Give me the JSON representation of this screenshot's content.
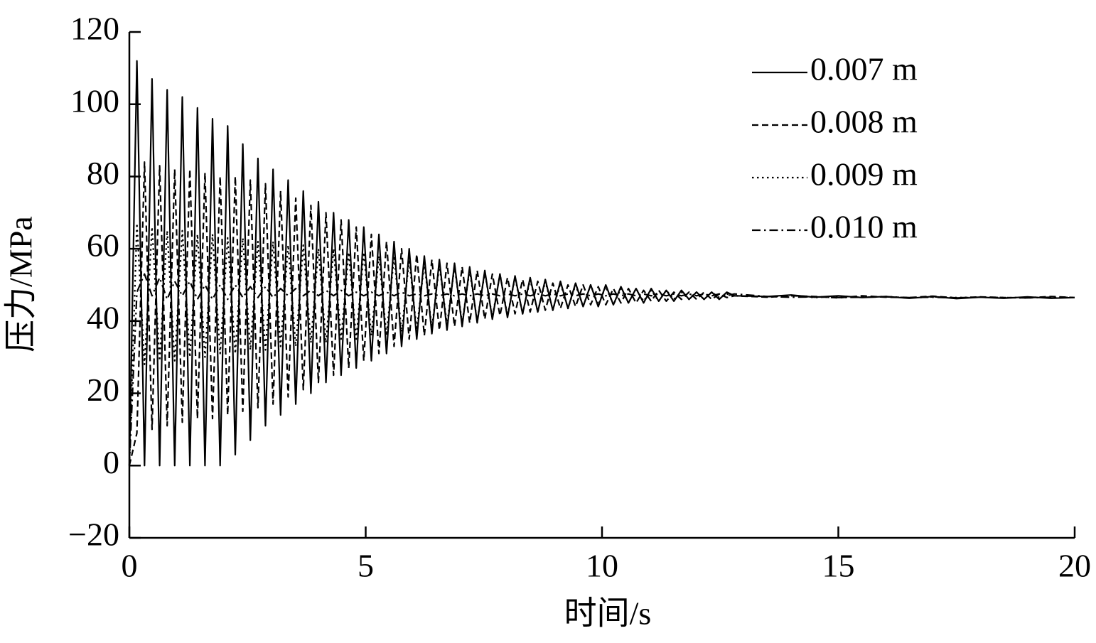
{
  "chart_data": {
    "type": "line",
    "xlabel": "时间/s",
    "ylabel": "压力/MPa",
    "xlim": [
      0,
      20
    ],
    "ylim": [
      -20,
      120
    ],
    "xticks": [
      0,
      5,
      10,
      15,
      20
    ],
    "yticks": [
      {
        "value": -20,
        "label": "−20"
      },
      0,
      20,
      40,
      60,
      80,
      100,
      120
    ],
    "legend": "upper right",
    "x": [
      0,
      0.16,
      0.32,
      0.48,
      0.64,
      0.8,
      0.96,
      1.12,
      1.28,
      1.44,
      1.6,
      1.76,
      1.92,
      2.08,
      2.24,
      2.4,
      2.56,
      2.72,
      2.88,
      3.04,
      3.2,
      3.36,
      3.52,
      3.68,
      3.84,
      4,
      4.16,
      4.32,
      4.48,
      4.64,
      4.8,
      4.96,
      5.12,
      5.28,
      5.44,
      5.6,
      5.76,
      5.92,
      6.08,
      6.24,
      6.4,
      6.56,
      6.72,
      6.88,
      7.04,
      7.2,
      7.36,
      7.52,
      7.68,
      7.84,
      8,
      8.16,
      8.32,
      8.48,
      8.64,
      8.8,
      8.96,
      9.12,
      9.28,
      9.44,
      9.6,
      9.76,
      9.92,
      10.08,
      10.24,
      10.4,
      10.56,
      10.72,
      10.88,
      11.04,
      11.2,
      11.36,
      11.52,
      11.68,
      11.84,
      12,
      12.16,
      12.32,
      12.48,
      12.64,
      12.8,
      13.5,
      14,
      14.5,
      15,
      15.5,
      16,
      16.5,
      17,
      17.5,
      18,
      18.5,
      19,
      19.5,
      20
    ],
    "series": [
      {
        "name": "0.007 m",
        "color": "#000000",
        "linestyle": "solid",
        "values": [
          0,
          112,
          0,
          107,
          0,
          104,
          0,
          102,
          0,
          99,
          0,
          96,
          0,
          94,
          3,
          89,
          7,
          85,
          11,
          82,
          14,
          79,
          17,
          76,
          20,
          73,
          23,
          70,
          25,
          68,
          27,
          66,
          29,
          64,
          31,
          62,
          33,
          60,
          35,
          58,
          36.5,
          57,
          37.5,
          56,
          38.5,
          55,
          39.5,
          54,
          40.5,
          53,
          41,
          52.5,
          42,
          52,
          42.5,
          51.5,
          43,
          51,
          43.5,
          50.5,
          44,
          50,
          44,
          50,
          44.5,
          49.5,
          45,
          49,
          45,
          49,
          45.5,
          48.5,
          45.5,
          48.5,
          46,
          48,
          46,
          48,
          46,
          48,
          47,
          46.8,
          47.2,
          46.6,
          47,
          46.5,
          46.8,
          46.3,
          46.8,
          46.2,
          46.6,
          46.3,
          46.7,
          46.3,
          46.5
        ]
      },
      {
        "name": "0.008 m",
        "color": "#000000",
        "linestyle": "dashed",
        "values": [
          0,
          9,
          84,
          10,
          83,
          11,
          82,
          12,
          82,
          13,
          81,
          13,
          80,
          14,
          80,
          15,
          79,
          16,
          78,
          17,
          76,
          19,
          74,
          21,
          72,
          23,
          70,
          25,
          68,
          27,
          66,
          29,
          64,
          31,
          62,
          33,
          60,
          35,
          58.5,
          36,
          57,
          37.5,
          56,
          38.5,
          55,
          39.5,
          54,
          40.5,
          53,
          41.5,
          52,
          42,
          51.5,
          42.5,
          51,
          43,
          50.5,
          43.5,
          50,
          44,
          50,
          44.5,
          49.5,
          44.5,
          49,
          45,
          49,
          45,
          48.5,
          45.5,
          48.5,
          45.5,
          48,
          46,
          48,
          46,
          48,
          46,
          47.5,
          46.5,
          47,
          46.6,
          47,
          46.8,
          46.4,
          47,
          46.6,
          46.5,
          46.9,
          46.4,
          46.7,
          46.5,
          46.4,
          46.8,
          46.5
        ]
      },
      {
        "name": "0.009 m",
        "color": "#000000",
        "linestyle": "dotted",
        "values": [
          0,
          67,
          28,
          66,
          29,
          65,
          29,
          65,
          30,
          64,
          30,
          64,
          31,
          63,
          31,
          63,
          32,
          62,
          32,
          62,
          33,
          61,
          33,
          61,
          34,
          60,
          34,
          60,
          35,
          59,
          35,
          59,
          36,
          58,
          36,
          58,
          37,
          57,
          37.5,
          56,
          38,
          55.5,
          39,
          55,
          39.5,
          54,
          40,
          53.5,
          41,
          53,
          41.5,
          52,
          42,
          51.5,
          42.5,
          51,
          43,
          50.5,
          43.5,
          50,
          44,
          50,
          44.5,
          49.5,
          44.5,
          49,
          45,
          49,
          45.5,
          48.5,
          45.5,
          48.5,
          46,
          48,
          46,
          48,
          46,
          48,
          46.5,
          47.5,
          47,
          46.7,
          47.1,
          46.5,
          46.9,
          46.6,
          46.8,
          46.4,
          46.7,
          46.5,
          46.6,
          46.4,
          46.6,
          46.5,
          46.5
        ]
      },
      {
        "name": "0.010 m",
        "color": "#000000",
        "linestyle": "dashdot",
        "values": [
          0,
          48,
          53,
          47,
          52,
          46,
          51,
          47,
          51,
          46,
          50,
          46,
          50,
          46,
          50,
          46.5,
          49.5,
          46.5,
          49.5,
          46.5,
          49,
          47,
          49,
          47,
          48.5,
          47,
          48.5,
          47,
          48.5,
          47,
          48,
          47,
          48,
          47,
          48,
          47,
          48,
          47,
          47.5,
          47,
          47.5,
          47,
          47.5,
          47,
          47.5,
          47,
          47.5,
          47,
          47.5,
          47,
          47.5,
          47,
          47.5,
          47,
          47.5,
          47,
          47.5,
          47,
          47.5,
          47,
          47.5,
          47,
          47.5,
          47,
          47.5,
          47,
          47.5,
          47,
          47.5,
          47,
          47.5,
          47,
          47.5,
          47,
          47.5,
          47,
          47.5,
          47,
          47.5,
          47,
          47.5,
          46.8,
          46.6,
          46.7,
          46.5,
          46.6,
          46.7,
          46.5,
          46.6,
          46.4,
          46.6,
          46.5,
          46.4,
          46.6,
          46.5
        ]
      }
    ]
  }
}
